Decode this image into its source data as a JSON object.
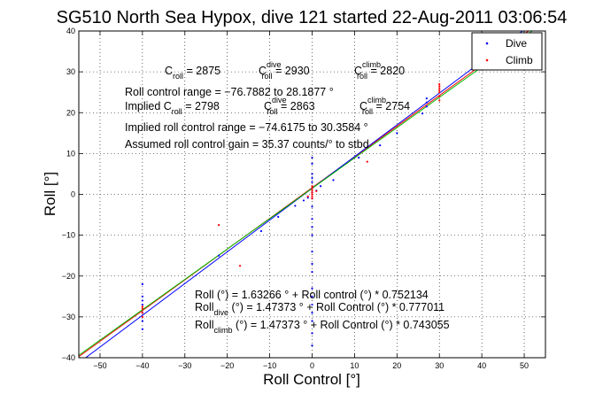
{
  "chart_data": {
    "type": "scatter",
    "title": "SG510 North Sea Hypox, dive 121 started 22-Aug-2011 03:06:54",
    "xlabel": "Roll Control [°]",
    "ylabel": "Roll [°]",
    "xlim": [
      -55,
      55
    ],
    "ylim": [
      -40,
      40
    ],
    "xticks": [
      "−50",
      "−40",
      "−30",
      "−20",
      "−10",
      "0",
      "10",
      "20",
      "30",
      "40",
      "50"
    ],
    "yticks": [
      "−40",
      "−30",
      "−20",
      "−10",
      "0",
      "10",
      "20",
      "30",
      "40"
    ],
    "grid": "dotted",
    "legend_position": "top-right",
    "series": [
      {
        "name": "Dive",
        "color": "#0000ff",
        "marker": "point",
        "points": [
          [
            -40,
            -22
          ],
          [
            -40,
            -25
          ],
          [
            -40,
            -27
          ],
          [
            -40,
            -29
          ],
          [
            -40,
            -31
          ],
          [
            -40,
            -33
          ],
          [
            -40,
            -26
          ],
          [
            0,
            5
          ],
          [
            0,
            3
          ],
          [
            0,
            1.5
          ],
          [
            0,
            0.5
          ],
          [
            0,
            -1
          ],
          [
            0,
            -3
          ],
          [
            0,
            -6
          ],
          [
            0,
            -10
          ],
          [
            0,
            -14
          ],
          [
            0,
            -19
          ],
          [
            0,
            -23
          ],
          [
            0,
            -27
          ],
          [
            0,
            -31
          ],
          [
            0,
            -34
          ],
          [
            0,
            -37
          ],
          [
            0,
            9
          ],
          [
            0,
            7.5
          ],
          [
            0,
            4
          ],
          [
            0,
            -8
          ],
          [
            0,
            -17
          ],
          [
            0,
            -25
          ],
          [
            0,
            -29
          ],
          [
            -4,
            -2.8
          ],
          [
            -2,
            -1.5
          ],
          [
            -22,
            -15
          ],
          [
            -12,
            -9
          ],
          [
            -8,
            -5.5
          ],
          [
            -1,
            -0.8
          ],
          [
            1,
            0.9
          ],
          [
            2,
            2
          ],
          [
            5,
            3.5
          ],
          [
            11,
            9
          ],
          [
            16,
            12
          ],
          [
            20,
            15
          ],
          [
            26,
            19.8
          ],
          [
            27,
            22.5
          ],
          [
            27,
            23.5
          ],
          [
            27,
            21.5
          ]
        ]
      },
      {
        "name": "Climb",
        "color": "#ff0000",
        "marker": "point",
        "points": [
          [
            -40,
            -28
          ],
          [
            -40,
            -29
          ],
          [
            -40,
            -30
          ],
          [
            -40,
            -27.5
          ],
          [
            0,
            2
          ],
          [
            0,
            1
          ],
          [
            0,
            0.5
          ],
          [
            0,
            0
          ],
          [
            0,
            -0.5
          ],
          [
            0,
            -1
          ],
          [
            0,
            1.5
          ],
          [
            30,
            27
          ],
          [
            30,
            26
          ],
          [
            30,
            25
          ],
          [
            30,
            24
          ],
          [
            30,
            23
          ],
          [
            30,
            26.5
          ],
          [
            30,
            25.5
          ],
          [
            -22,
            -7.5
          ],
          [
            -17,
            -17.5
          ],
          [
            13,
            8
          ],
          [
            -1,
            -0.5
          ],
          [
            1,
            0.8
          ]
        ]
      }
    ],
    "fit_lines": [
      {
        "label": "fit",
        "color": "#ff0000",
        "intercept": 1.63266,
        "slope": 0.752134
      },
      {
        "label": "fit dive",
        "color": "#0000ff",
        "intercept": 1.47373,
        "slope": 0.777011
      },
      {
        "label": "fit climb",
        "color": "#00c000",
        "intercept": 1.47373,
        "slope": 0.743055
      }
    ]
  },
  "annotations": {
    "croll_main": "C",
    "croll_main_sub": "roll",
    "croll_main_val": " = 2875",
    "croll_dive": "C",
    "croll_dive_sup": "dive",
    "croll_dive_sub": "roll",
    "croll_dive_val": " = 2930",
    "croll_climb": "C",
    "croll_climb_sup": "climb",
    "croll_climb_sub": "roll",
    "croll_climb_val": " = 2820",
    "range_line": "Roll control range = −76.7882 to 28.1877 °",
    "implied_main": "Implied C",
    "implied_main_sub": "roll",
    "implied_main_val": " = 2798",
    "implied_dive": "C",
    "implied_dive_sup": "dive",
    "implied_dive_sub": "roll",
    "implied_dive_val": " = 2863",
    "implied_climb": "C",
    "implied_climb_sup": "climb",
    "implied_climb_sub": "roll",
    "implied_climb_val": " = 2754",
    "implied_range": "Implied roll control range = −74.6175 to 30.3584 °",
    "gain": "Assumed roll control gain = 35.37 counts/° to stbd",
    "eq1": "Roll (°) = 1.63266 ° + Roll control (°) * 0.752134",
    "eq2_pre": "Roll",
    "eq2_sub": "dive",
    "eq2_rest": " (°) = 1.47373 ° + Roll Control (°) * 0.777011",
    "eq3_pre": "Roll",
    "eq3_sub": "climb",
    "eq3_rest": " (°) = 1.47373 ° + Roll Control (°) * 0.743055"
  }
}
